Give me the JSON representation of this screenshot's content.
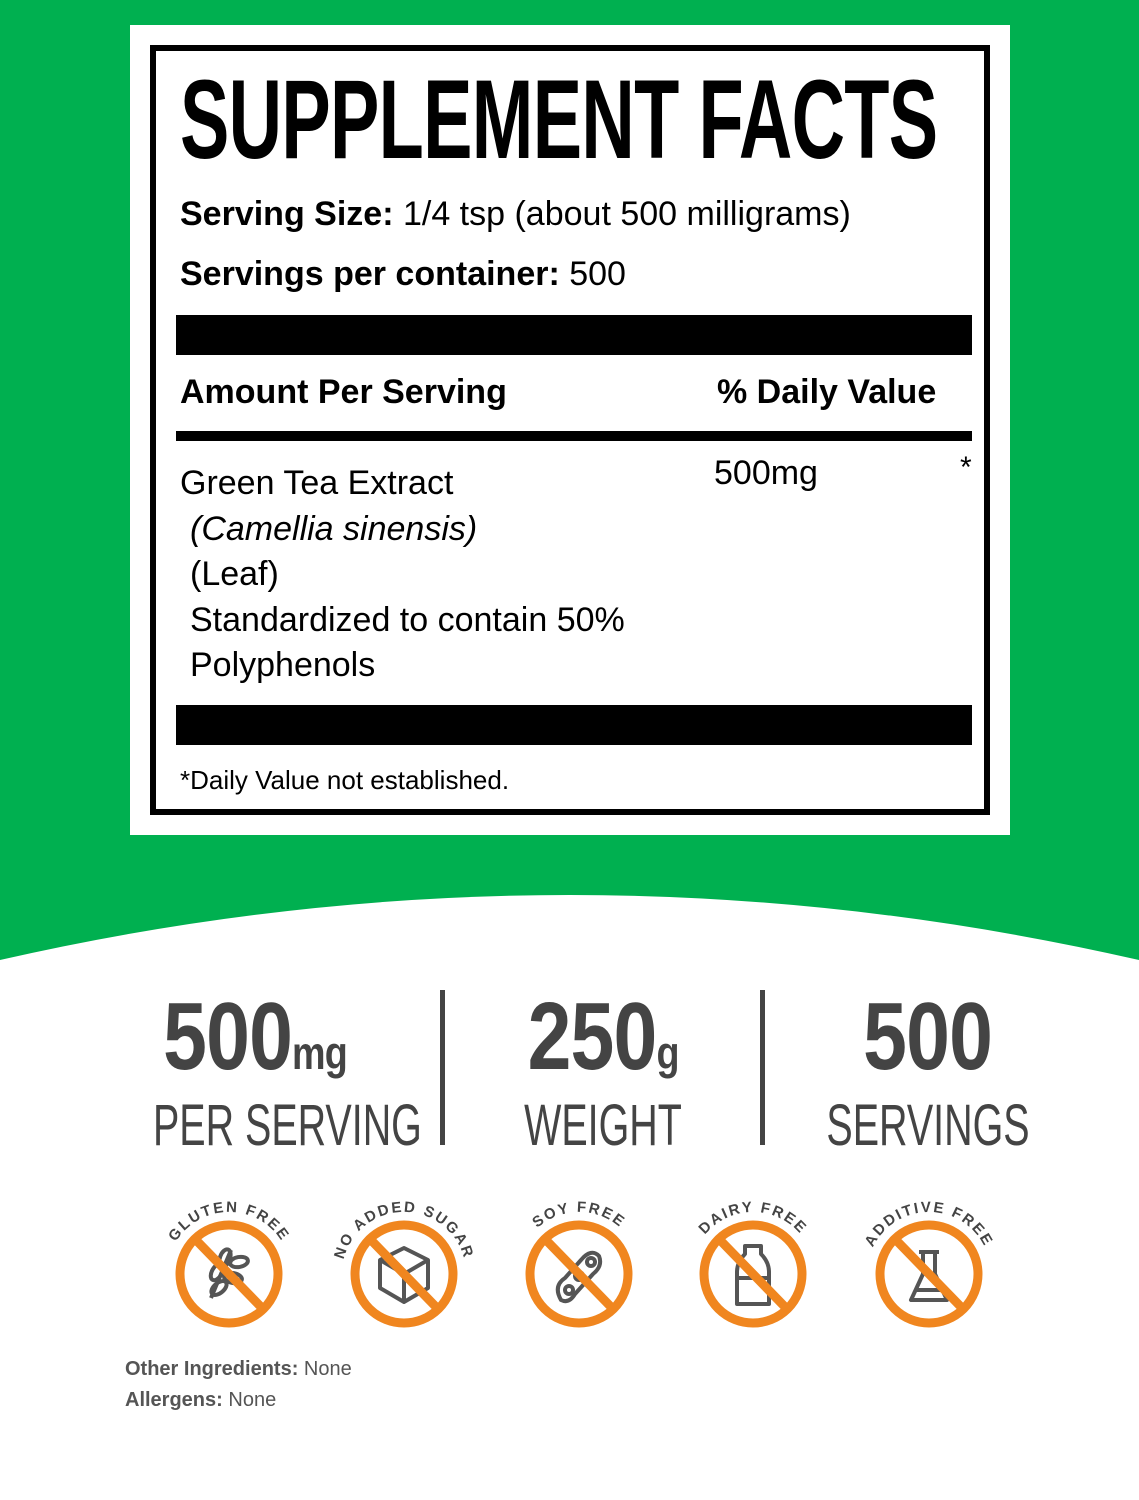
{
  "colors": {
    "background_green": "#00b050",
    "badge_orange": "#f0861f",
    "stat_gray": "#444444"
  },
  "label": {
    "title": "SUPPLEMENT FACTS",
    "serving_size_label": "Serving Size:",
    "serving_size_value": "1/4 tsp (about 500 milligrams)",
    "servings_label": "Servings per container:",
    "servings_value": "500",
    "amount_header": "Amount Per Serving",
    "dv_header": "% Daily Value",
    "ingredient": {
      "name": "Green Tea Extract",
      "latin": "(Camellia sinensis)",
      "part": "(Leaf)",
      "standard_1": "Standardized to contain 50%",
      "standard_2": "Polyphenols",
      "amount": "500mg",
      "dv": "*"
    },
    "footnote": "*Daily Value not established."
  },
  "stats": [
    {
      "value": "500",
      "unit": "mg",
      "label": "PER SERVING"
    },
    {
      "value": "250",
      "unit": "g",
      "label": "WEIGHT"
    },
    {
      "value": "500",
      "unit": "",
      "label": "SERVINGS"
    }
  ],
  "badges": [
    {
      "text": "GLUTEN FREE",
      "icon": "wheat-icon"
    },
    {
      "text": "NO ADDED SUGAR",
      "icon": "sugar-cube-icon"
    },
    {
      "text": "SOY FREE",
      "icon": "soybean-icon"
    },
    {
      "text": "DAIRY FREE",
      "icon": "milk-bottle-icon"
    },
    {
      "text": "ADDITIVE FREE",
      "icon": "flask-icon"
    }
  ],
  "other_ingredients": {
    "label": "Other Ingredients:",
    "value": "None"
  },
  "allergens": {
    "label": "Allergens:",
    "value": "None"
  }
}
